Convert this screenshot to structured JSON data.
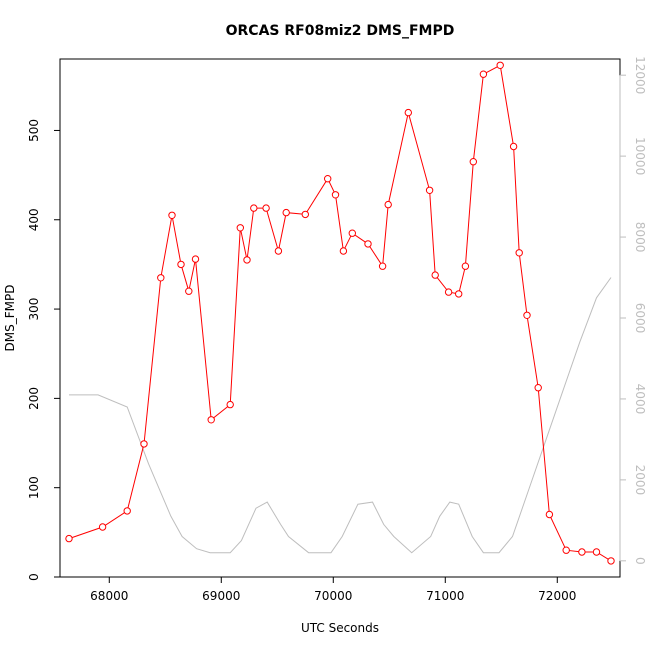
{
  "chart_data": {
    "type": "line",
    "title": "ORCAS RF08miz2 DMS_FMPD",
    "xlabel": "UTC Seconds",
    "ylabel": "DMS_FMPD",
    "xlim": [
      67560,
      72560
    ],
    "ylim": [
      0,
      580
    ],
    "y2lim": [
      -400,
      12400
    ],
    "x_ticks": [
      68000,
      69000,
      70000,
      71000,
      72000
    ],
    "y_ticks": [
      0,
      100,
      200,
      300,
      400,
      500
    ],
    "y2_ticks": [
      0,
      2000,
      4000,
      6000,
      8000,
      10000,
      12000
    ],
    "x_tick_labels": [
      "68000",
      "69000",
      "70000",
      "71000",
      "72000"
    ],
    "y_tick_labels": [
      "0",
      "100",
      "200",
      "300",
      "400",
      "500"
    ],
    "y2_tick_labels": [
      "0",
      "2000",
      "4000",
      "6000",
      "8000",
      "10000",
      "12000"
    ],
    "grid": false,
    "series": [
      {
        "color": "#ff0000",
        "axis": "left",
        "marker": "open-circle",
        "x": [
          67640,
          67940,
          68160,
          68310,
          68460,
          68560,
          68640,
          68710,
          68770,
          68910,
          69080,
          69170,
          69230,
          69290,
          69400,
          69510,
          69580,
          69750,
          69950,
          70020,
          70090,
          70170,
          70310,
          70440,
          70490,
          70670,
          70860,
          70910,
          71030,
          71120,
          71180,
          71250,
          71340,
          71490,
          71610,
          71660,
          71730,
          71830,
          71930,
          72080,
          72220,
          72350,
          72480
        ],
        "y": [
          43,
          56,
          74,
          149,
          335,
          405,
          350,
          320,
          356,
          176,
          193,
          391,
          355,
          413,
          413,
          365,
          408,
          406,
          446,
          428,
          365,
          385,
          373,
          348,
          417,
          520,
          433,
          338,
          319,
          317,
          348,
          465,
          563,
          573,
          482,
          363,
          293,
          212,
          70,
          30,
          28,
          28,
          18
        ]
      },
      {
        "color": "#bebebe",
        "axis": "right",
        "marker": "none",
        "x": [
          67640,
          67900,
          68160,
          68350,
          68550,
          68650,
          68780,
          68900,
          69080,
          69180,
          69310,
          69410,
          69530,
          69600,
          69780,
          69980,
          70080,
          70220,
          70350,
          70450,
          70540,
          70700,
          70870,
          70950,
          71040,
          71120,
          71240,
          71340,
          71480,
          71600,
          71750,
          71900,
          72050,
          72200,
          72350,
          72480
        ],
        "y": [
          4100,
          4100,
          3800,
          2400,
          1100,
          600,
          300,
          200,
          200,
          500,
          1300,
          1450,
          900,
          600,
          200,
          200,
          600,
          1400,
          1450,
          900,
          600,
          200,
          600,
          1100,
          1450,
          1400,
          600,
          200,
          200,
          600,
          1800,
          3000,
          4200,
          5400,
          6500,
          7000
        ]
      }
    ]
  }
}
